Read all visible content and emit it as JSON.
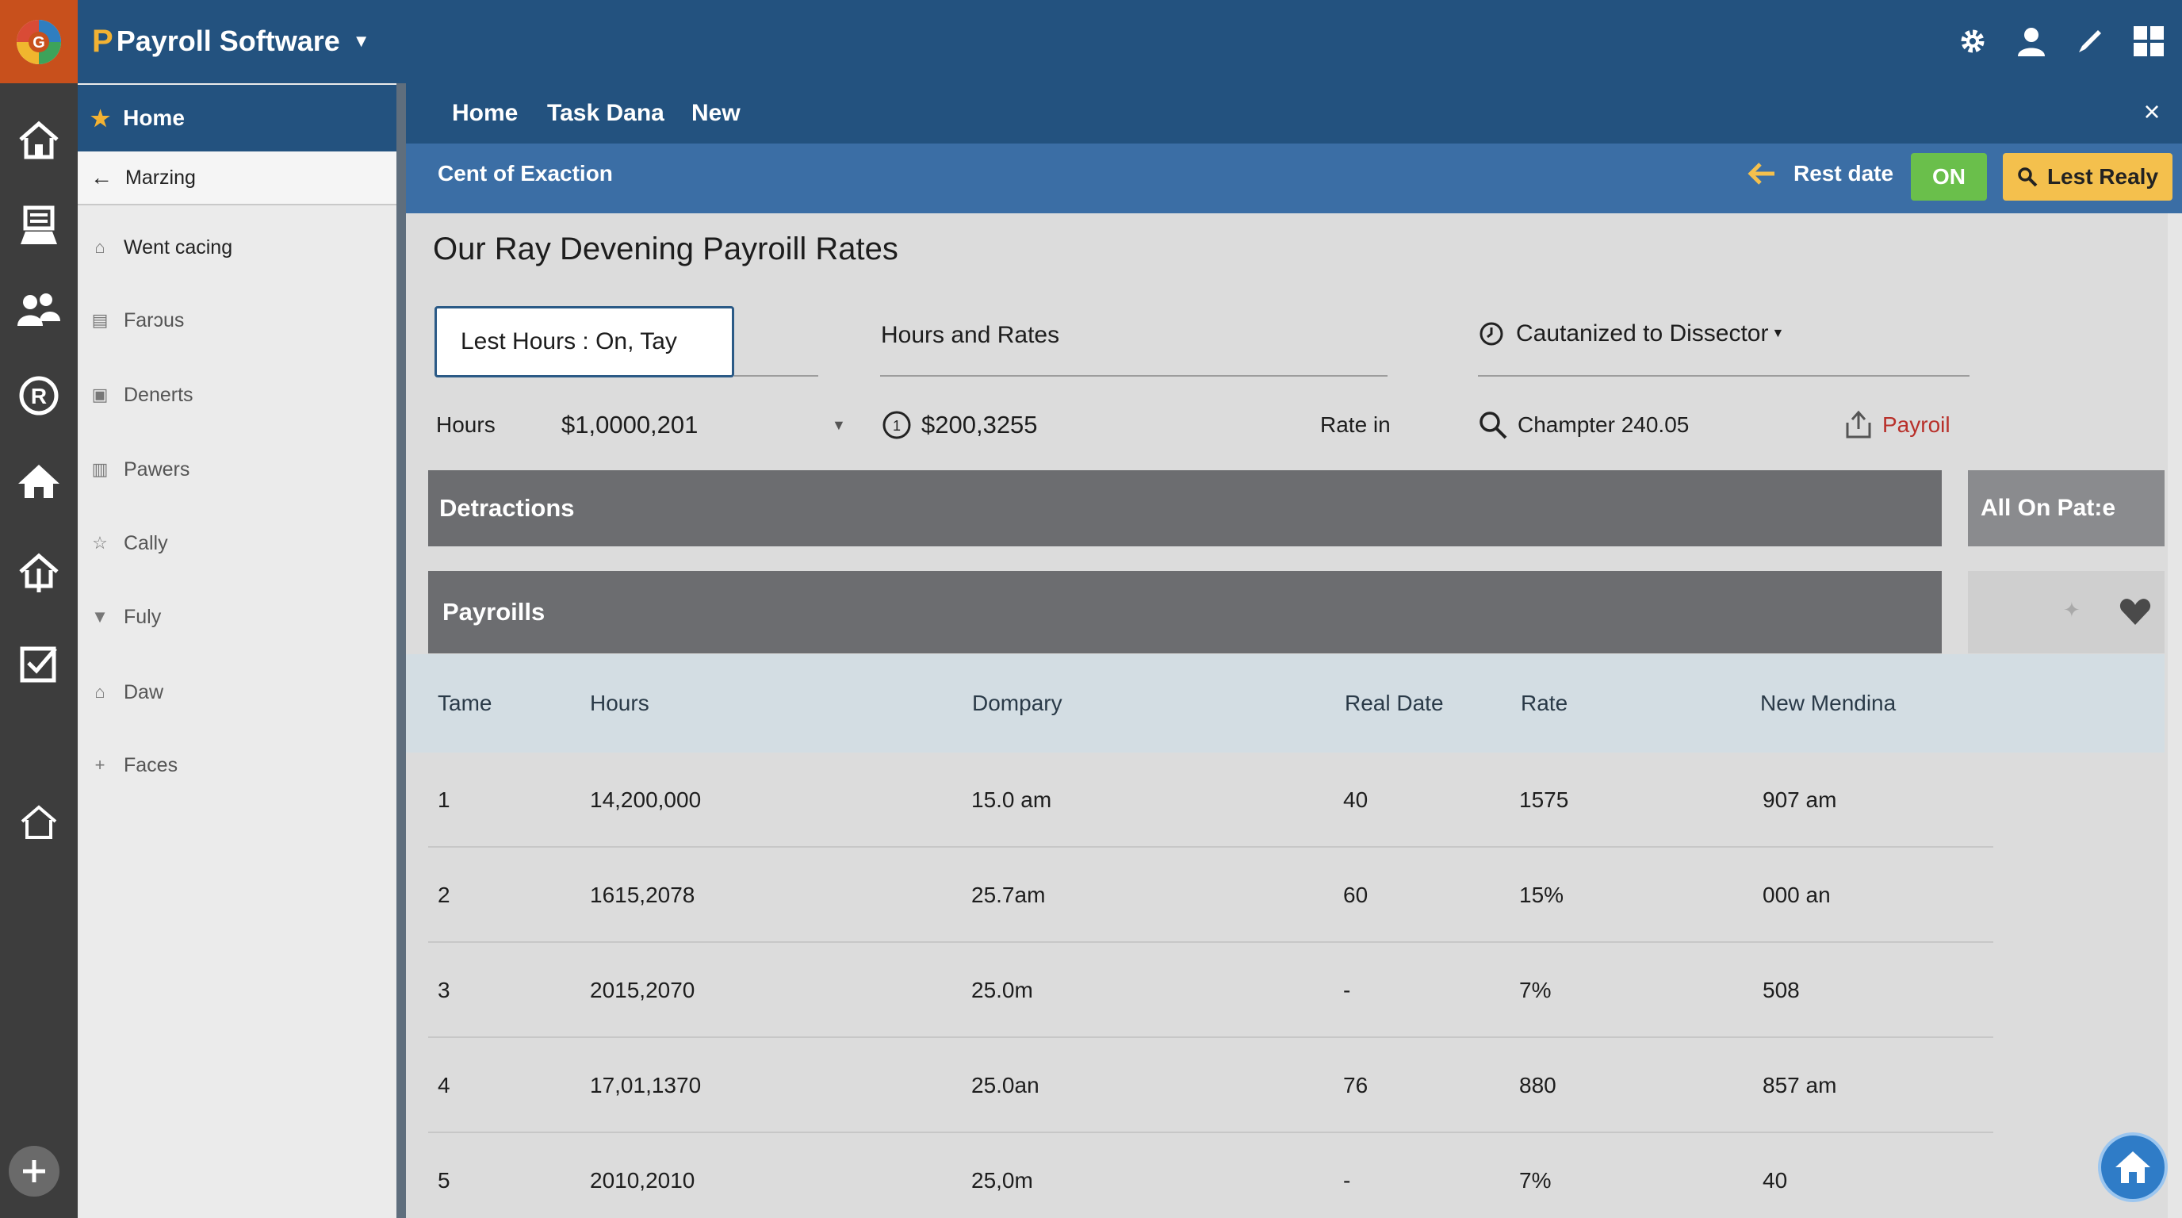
{
  "app": {
    "title": "Payroll Software",
    "logo_letter": "P",
    "caret": "▼"
  },
  "top_icons": [
    "gear-icon",
    "user-icon",
    "pen-icon",
    "grid-icon"
  ],
  "sidebar": {
    "home_label": "Home",
    "active_label": "Marzing",
    "items": [
      {
        "label": "Went cacing",
        "icon": "home-icon"
      },
      {
        "label": "Farɔus",
        "icon": "document-icon"
      },
      {
        "label": "Denerts",
        "icon": "lock-icon"
      },
      {
        "label": "Pawers",
        "icon": "building-icon"
      },
      {
        "label": "Cally",
        "icon": "star-outline-icon"
      },
      {
        "label": "Fuly",
        "icon": "triangle-down-icon"
      },
      {
        "label": "Daw",
        "icon": "house-icon"
      },
      {
        "label": "Faces",
        "icon": "plus-icon"
      }
    ]
  },
  "nav": {
    "tabs": [
      "Home",
      "Task Dana",
      "New"
    ],
    "close": "×"
  },
  "subbar": {
    "title": "Cent of Exaction",
    "rest_date": "Rest date",
    "on_label": "ON",
    "lest_realy": "Lest Realy"
  },
  "main": {
    "page_title": "Our Ray Devening Payroill Rates",
    "filter_value": "Lest Hours :  On, Tay",
    "hours_rates": "Hours and Rates",
    "customized": "Cautanized to Dissector",
    "hours_label": "Hours",
    "hours_value": "$1,0000,201",
    "amount_value": "$200,3255",
    "rate_in": "Rate in",
    "chapter": "Champter 240.05",
    "payroll_link": "Payroil",
    "detractions": "Detractions",
    "all_on_page": "All On Pat:e",
    "payrolls": "Payroills"
  },
  "table": {
    "headers": [
      "Tame",
      "Hours",
      "Dompary",
      "Real Date",
      "Rate",
      "New Mendina"
    ],
    "rows": [
      [
        "1",
        "14,200,000",
        "15.0 am",
        "40",
        "1575",
        "907 am"
      ],
      [
        "2",
        "1615,2078",
        "25.7am",
        "60",
        "15%",
        "000 an"
      ],
      [
        "3",
        "2015,2070",
        "25.0m",
        "-",
        "7%",
        "508"
      ],
      [
        "4",
        "17,01,1370",
        "25.0an",
        "76",
        "880",
        "857 am"
      ],
      [
        "5",
        "2010,2010",
        "25,0m",
        "-",
        "7%",
        "40"
      ]
    ]
  },
  "colors": {
    "topbar": "#23527f",
    "subbar": "#3b6ea5",
    "on_button": "#6abf4b",
    "lest_button": "#f4c04d",
    "gray_bar": "#6c6d70",
    "payroll_link": "#b8302a"
  }
}
